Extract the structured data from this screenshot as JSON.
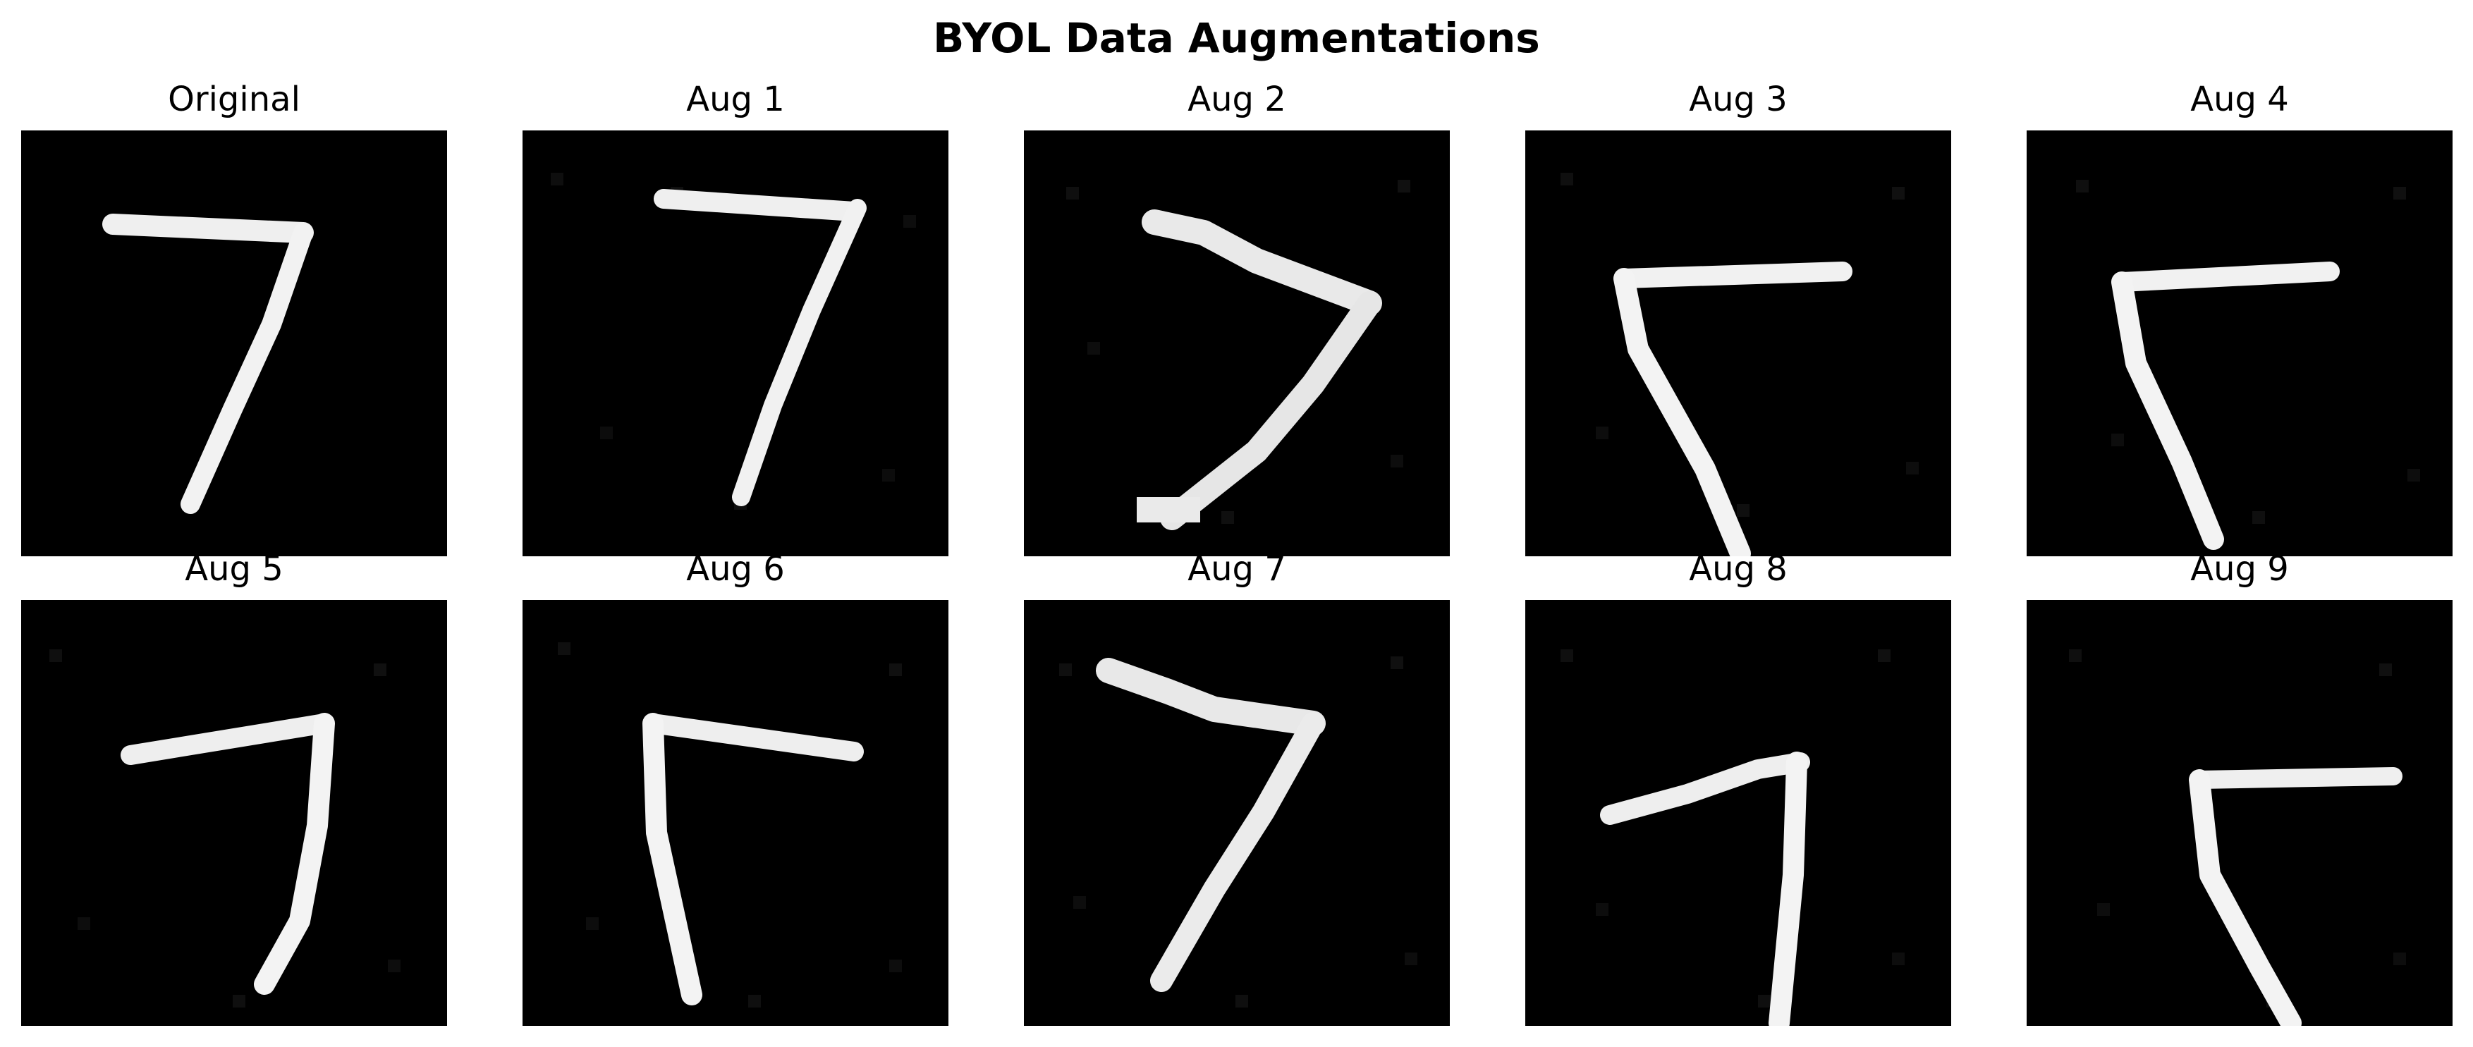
{
  "figure": {
    "title": "BYOL Data Augmentations"
  },
  "panels": [
    {
      "title": "Original",
      "image": "handwritten-digit-7-original"
    },
    {
      "title": "Aug 1",
      "image": "handwritten-digit-7-augmented-noisy"
    },
    {
      "title": "Aug 2",
      "image": "handwritten-digit-7-augmented-distorted"
    },
    {
      "title": "Aug 3",
      "image": "handwritten-digit-7-augmented-flipped"
    },
    {
      "title": "Aug 4",
      "image": "handwritten-digit-7-augmented-flipped"
    },
    {
      "title": "Aug 5",
      "image": "handwritten-digit-7-augmented-scaled"
    },
    {
      "title": "Aug 6",
      "image": "handwritten-digit-7-augmented-flipped"
    },
    {
      "title": "Aug 7",
      "image": "handwritten-digit-7-augmented-distorted"
    },
    {
      "title": "Aug 8",
      "image": "handwritten-digit-7-augmented-shifted"
    },
    {
      "title": "Aug 9",
      "image": "handwritten-digit-7-augmented-flipped-shifted"
    }
  ],
  "colors": {
    "background": "#ffffff",
    "image_background": "#000000",
    "stroke": "#f2f2f2"
  }
}
